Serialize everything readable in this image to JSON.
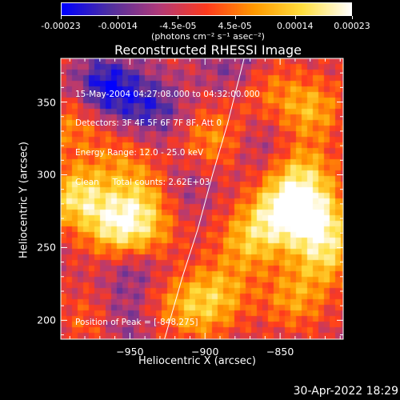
{
  "colorbar": {
    "tick_labels": [
      "-0.00023",
      "-0.00014",
      "-4.5e-05",
      "4.5e-05",
      "0.00014",
      "0.00023"
    ],
    "units_label": "(photons cm⁻² s⁻¹ asec⁻²)",
    "range": [
      -0.00023,
      0.00023
    ],
    "colormap_stops": [
      "#0000ff",
      "#5030a0",
      "#b03a7a",
      "#ff3b1e",
      "#ff9a00",
      "#ffe040",
      "#ffffff"
    ]
  },
  "chart_data": {
    "type": "heatmap",
    "title": "Reconstructed RHESSI Image",
    "xlabel": "Heliocentric X (arcsec)",
    "ylabel": "Heliocentric Y (arcsec)",
    "xlim": [
      -996,
      -808
    ],
    "ylim": [
      187,
      380
    ],
    "xticks": [
      -950,
      -900,
      -850
    ],
    "xtick_labels": [
      "−950",
      "−900",
      "−850"
    ],
    "yticks": [
      200,
      250,
      300,
      350
    ],
    "ytick_labels": [
      "200",
      "250",
      "300",
      "350"
    ],
    "hot_spots": [
      {
        "x": -985,
        "y": 285,
        "value": 0.0002
      },
      {
        "x": -958,
        "y": 265,
        "value": 0.00021
      },
      {
        "x": -940,
        "y": 285,
        "value": 0.00012
      },
      {
        "x": -988,
        "y": 335,
        "value": 0.0001
      },
      {
        "x": -955,
        "y": 310,
        "value": 8e-05
      },
      {
        "x": -937,
        "y": 258,
        "value": 9e-05
      },
      {
        "x": -848,
        "y": 275,
        "value": 0.00023
      },
      {
        "x": -825,
        "y": 270,
        "value": 0.00019
      },
      {
        "x": -835,
        "y": 300,
        "value": 0.00016
      },
      {
        "x": -870,
        "y": 255,
        "value": 0.00015
      },
      {
        "x": -820,
        "y": 245,
        "value": 0.00016
      },
      {
        "x": -890,
        "y": 220,
        "value": 0.00012
      },
      {
        "x": -905,
        "y": 205,
        "value": 0.0001
      },
      {
        "x": -840,
        "y": 215,
        "value": 0.00012
      },
      {
        "x": -895,
        "y": 325,
        "value": 0.00011
      },
      {
        "x": -830,
        "y": 345,
        "value": 0.00014
      },
      {
        "x": -860,
        "y": 360,
        "value": 8e-05
      },
      {
        "x": -975,
        "y": 200,
        "value": 8e-05
      },
      {
        "x": -925,
        "y": 215,
        "value": 7e-05
      }
    ],
    "cold_spots": [
      {
        "x": -965,
        "y": 360,
        "value": -0.00018
      },
      {
        "x": -935,
        "y": 345,
        "value": -0.00012
      },
      {
        "x": -945,
        "y": 235,
        "value": -9e-05
      },
      {
        "x": -955,
        "y": 200,
        "value": -8e-05
      },
      {
        "x": -915,
        "y": 290,
        "value": -6e-05
      },
      {
        "x": -880,
        "y": 375,
        "value": -8e-05
      },
      {
        "x": -862,
        "y": 320,
        "value": -5e-05
      }
    ],
    "limb_curve": [
      {
        "x": -927,
        "y": 187
      },
      {
        "x": -915,
        "y": 230
      },
      {
        "x": -905,
        "y": 262
      },
      {
        "x": -895,
        "y": 300
      },
      {
        "x": -885,
        "y": 335
      },
      {
        "x": -874,
        "y": 380
      }
    ],
    "annotations": [
      "15-May-2004 04:27:08.000 to 04:32:00.000",
      "Detectors: 3F 4F 5F 6F 7F 8F, Att 0",
      "Energy Range: 12.0 - 25.0 keV",
      "Clean     Total counts: 2.62E+03"
    ],
    "peak_label": "Position of Peak = [-848,275]",
    "peak": {
      "x": -848,
      "y": 275
    }
  },
  "footer": {
    "date": "30-Apr-2022 18:29"
  }
}
